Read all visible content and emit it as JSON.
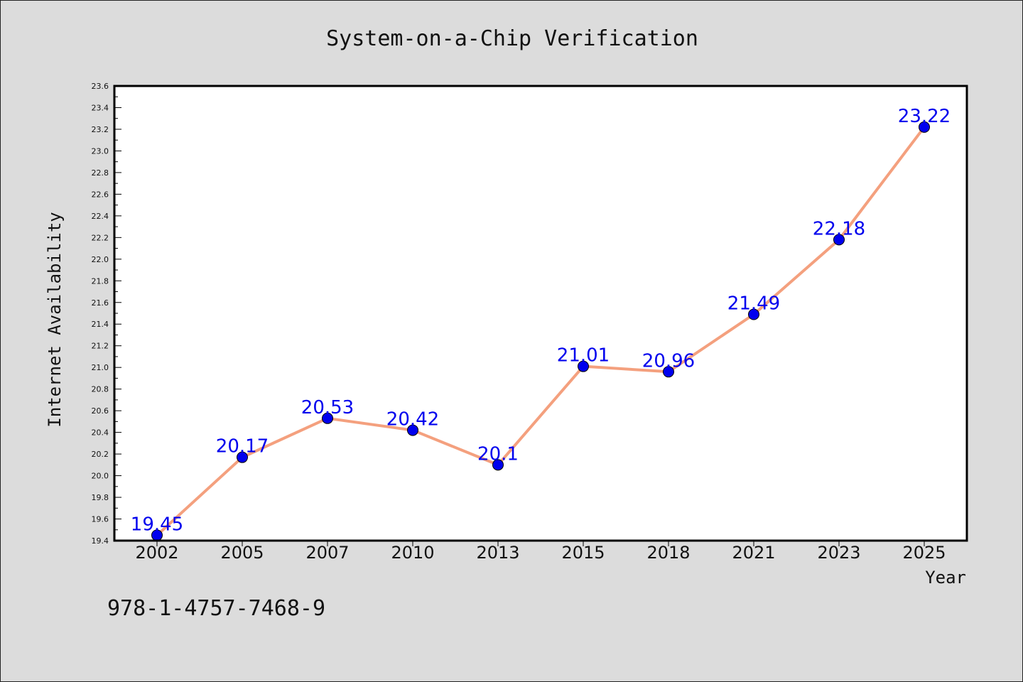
{
  "chart_data": {
    "type": "line",
    "title": "System-on-a-Chip Verification",
    "xlabel": "Year",
    "ylabel": "Internet Availability",
    "categories": [
      "2002",
      "2005",
      "2007",
      "2010",
      "2013",
      "2015",
      "2018",
      "2021",
      "2023",
      "2025"
    ],
    "series": [
      {
        "values": [
          19.45,
          20.17,
          20.53,
          20.42,
          20.1,
          21.01,
          20.96,
          21.49,
          22.18,
          23.22
        ]
      }
    ],
    "data_labels": [
      "19.45",
      "20.17",
      "20.53",
      "20.42",
      "20.1",
      "21.01",
      "20.96",
      "21.49",
      "22.18",
      "23.22"
    ],
    "ylim": [
      19.4,
      23.6
    ],
    "yticks": [
      "19.4",
      "19.6",
      "19.8",
      "20.0",
      "20.2",
      "20.4",
      "20.6",
      "20.8",
      "21.0",
      "21.2",
      "21.4",
      "21.6",
      "21.8",
      "22.0",
      "22.2",
      "22.4",
      "22.6",
      "22.8",
      "23.0",
      "23.2",
      "23.4",
      "23.6"
    ],
    "grid": false,
    "line_color": "#f4a07e",
    "marker_color": "#0000ee",
    "label_color": "#0000ee"
  },
  "annotation": "978-1-4757-7468-9"
}
